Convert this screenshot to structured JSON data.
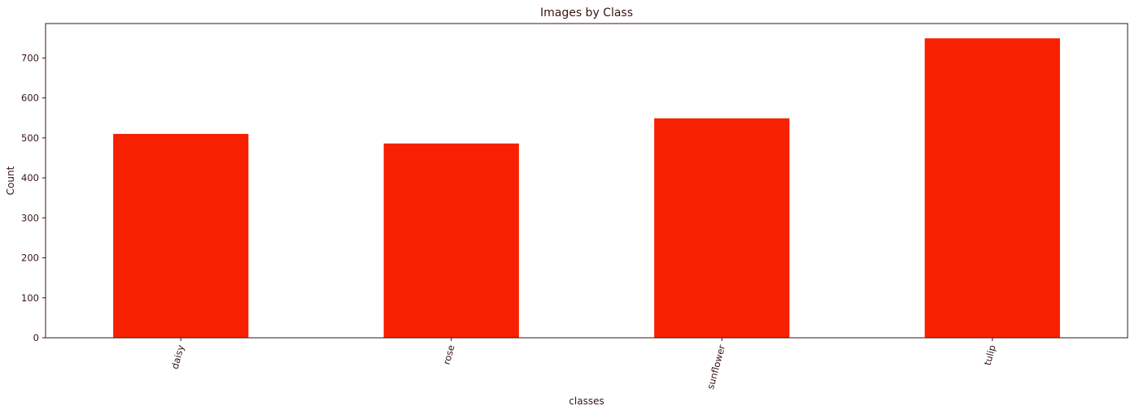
{
  "chart_data": {
    "type": "bar",
    "title": "Images by Class",
    "xlabel": "classes",
    "ylabel": "Count",
    "categories": [
      "daisy",
      "rose",
      "sunflower",
      "tulip"
    ],
    "values": [
      510,
      486,
      549,
      749
    ],
    "ylim": [
      0,
      786
    ],
    "yticks": [
      0,
      100,
      200,
      300,
      400,
      500,
      600,
      700
    ],
    "grid": false,
    "legend": "none",
    "bar_color": "#f72000",
    "text_color": "#3a1414"
  }
}
